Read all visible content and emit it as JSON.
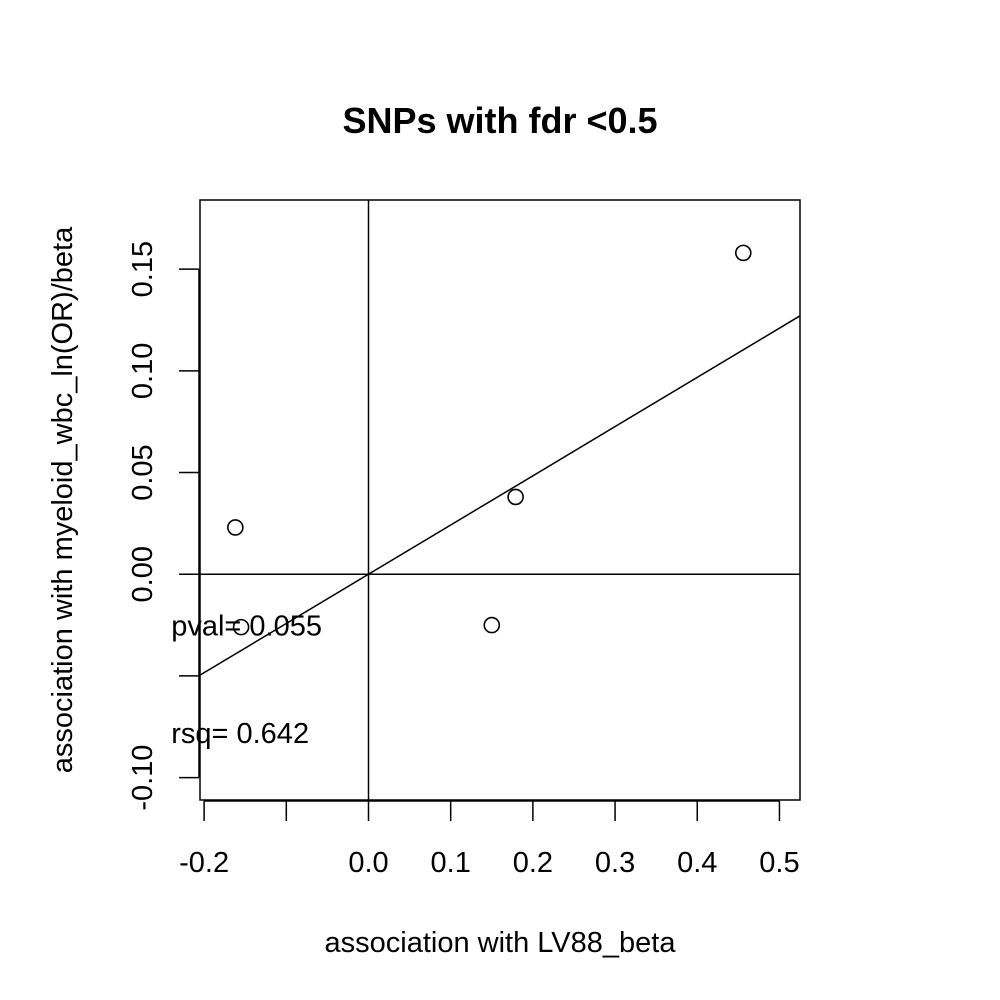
{
  "chart_data": {
    "type": "scatter",
    "title": "SNPs with fdr <0.5",
    "xlabel": "association with LV88_beta",
    "ylabel": "association with myeloid_wbc_ln(OR)/beta",
    "xlim": [
      -0.205,
      0.525
    ],
    "ylim": [
      -0.111,
      0.184
    ],
    "x_ticks": [
      -0.2,
      -0.1,
      0.0,
      0.1,
      0.2,
      0.3,
      0.4,
      0.5
    ],
    "x_tick_labels": [
      "-0.2",
      "",
      "0.0",
      "0.1",
      "0.2",
      "0.3",
      "0.4",
      "0.5"
    ],
    "y_ticks": [
      -0.1,
      -0.05,
      0.0,
      0.05,
      0.1,
      0.15
    ],
    "y_tick_labels": [
      "-0.10",
      "",
      "0.00",
      "0.05",
      "0.10",
      "0.15"
    ],
    "points": [
      {
        "x": -0.162,
        "y": 0.023
      },
      {
        "x": -0.155,
        "y": -0.026
      },
      {
        "x": 0.15,
        "y": -0.025
      },
      {
        "x": 0.179,
        "y": 0.038
      },
      {
        "x": 0.456,
        "y": 0.158
      }
    ],
    "reference_lines": {
      "h": 0.0,
      "v": 0.0
    },
    "regression": {
      "slope": 0.242,
      "intercept": 0.0
    },
    "annotations": [
      {
        "id": "pval",
        "text": "pval= 0.055",
        "x": -0.24,
        "y": -0.03
      },
      {
        "id": "rsq",
        "text": "rsq= 0.642",
        "x": -0.24,
        "y": -0.083
      }
    ],
    "grid": false,
    "legend": "none"
  }
}
